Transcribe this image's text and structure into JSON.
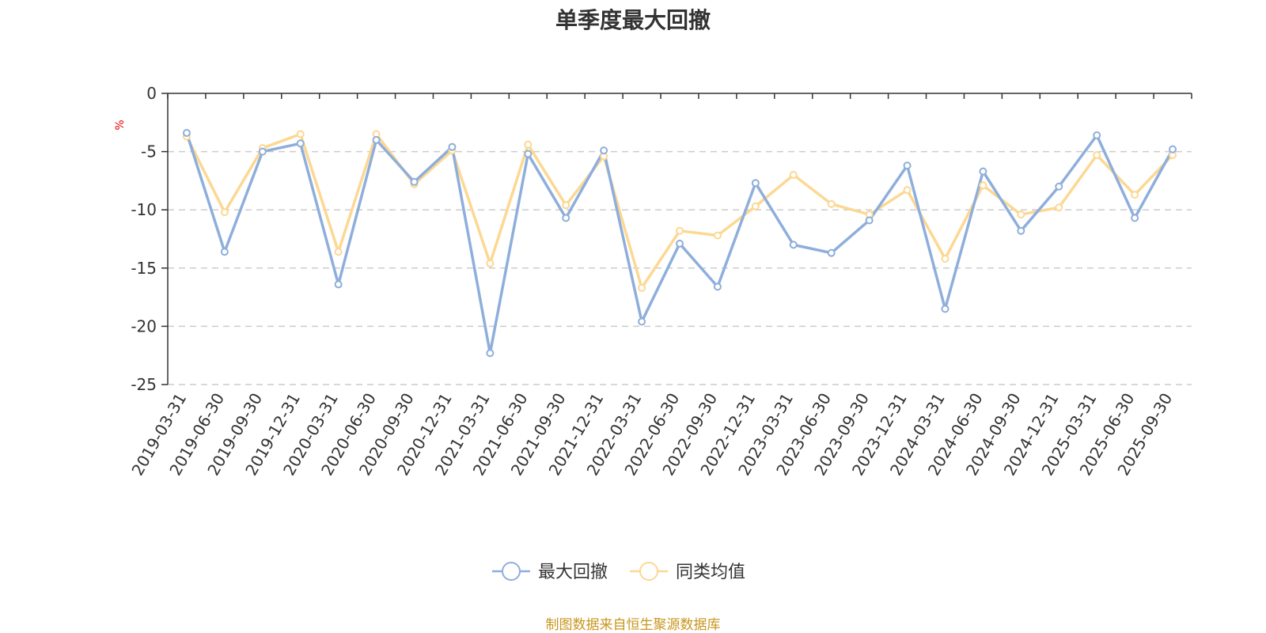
{
  "chart_data": {
    "type": "line",
    "title": "单季度最大回撤",
    "ylabel": "%",
    "ylim": [
      -25,
      0
    ],
    "yticks": [
      0,
      -5,
      -10,
      -15,
      -20,
      -25
    ],
    "grid": true,
    "legend_position": "bottom-center",
    "categories": [
      "2019-03-31",
      "2019-06-30",
      "2019-09-30",
      "2019-12-31",
      "2020-03-31",
      "2020-06-30",
      "2020-09-30",
      "2020-12-31",
      "2021-03-31",
      "2021-06-30",
      "2021-09-30",
      "2021-12-31",
      "2022-03-31",
      "2022-06-30",
      "2022-09-30",
      "2022-12-31",
      "2023-03-31",
      "2023-06-30",
      "2023-09-30",
      "2023-12-31",
      "2024-03-31",
      "2024-06-30",
      "2024-09-30",
      "2024-12-31",
      "2025-03-31",
      "2025-06-30",
      "2025-09-30"
    ],
    "series": [
      {
        "name": "最大回撤",
        "color": "#8eaedb",
        "values": [
          -3.4,
          -13.6,
          -5.0,
          -4.3,
          -16.4,
          -4.0,
          -7.6,
          -4.6,
          -22.3,
          -5.2,
          -10.7,
          -4.9,
          -19.6,
          -12.9,
          -16.6,
          -7.7,
          -13.0,
          -13.7,
          -10.9,
          -6.2,
          -18.5,
          -6.7,
          -11.8,
          -8.0,
          -3.6,
          -10.7,
          -4.8
        ]
      },
      {
        "name": "同类均值",
        "color": "#fcd893",
        "values": [
          -3.7,
          -10.2,
          -4.7,
          -3.5,
          -13.6,
          -3.5,
          -7.8,
          -4.9,
          -14.6,
          -4.4,
          -9.6,
          -5.4,
          -16.7,
          -11.8,
          -12.2,
          -9.7,
          -7.0,
          -9.5,
          -10.4,
          -8.3,
          -14.2,
          -7.9,
          -10.4,
          -9.8,
          -5.3,
          -8.7,
          -5.3
        ]
      }
    ]
  },
  "footer": {
    "source": "制图数据来自恒生聚源数据库"
  }
}
